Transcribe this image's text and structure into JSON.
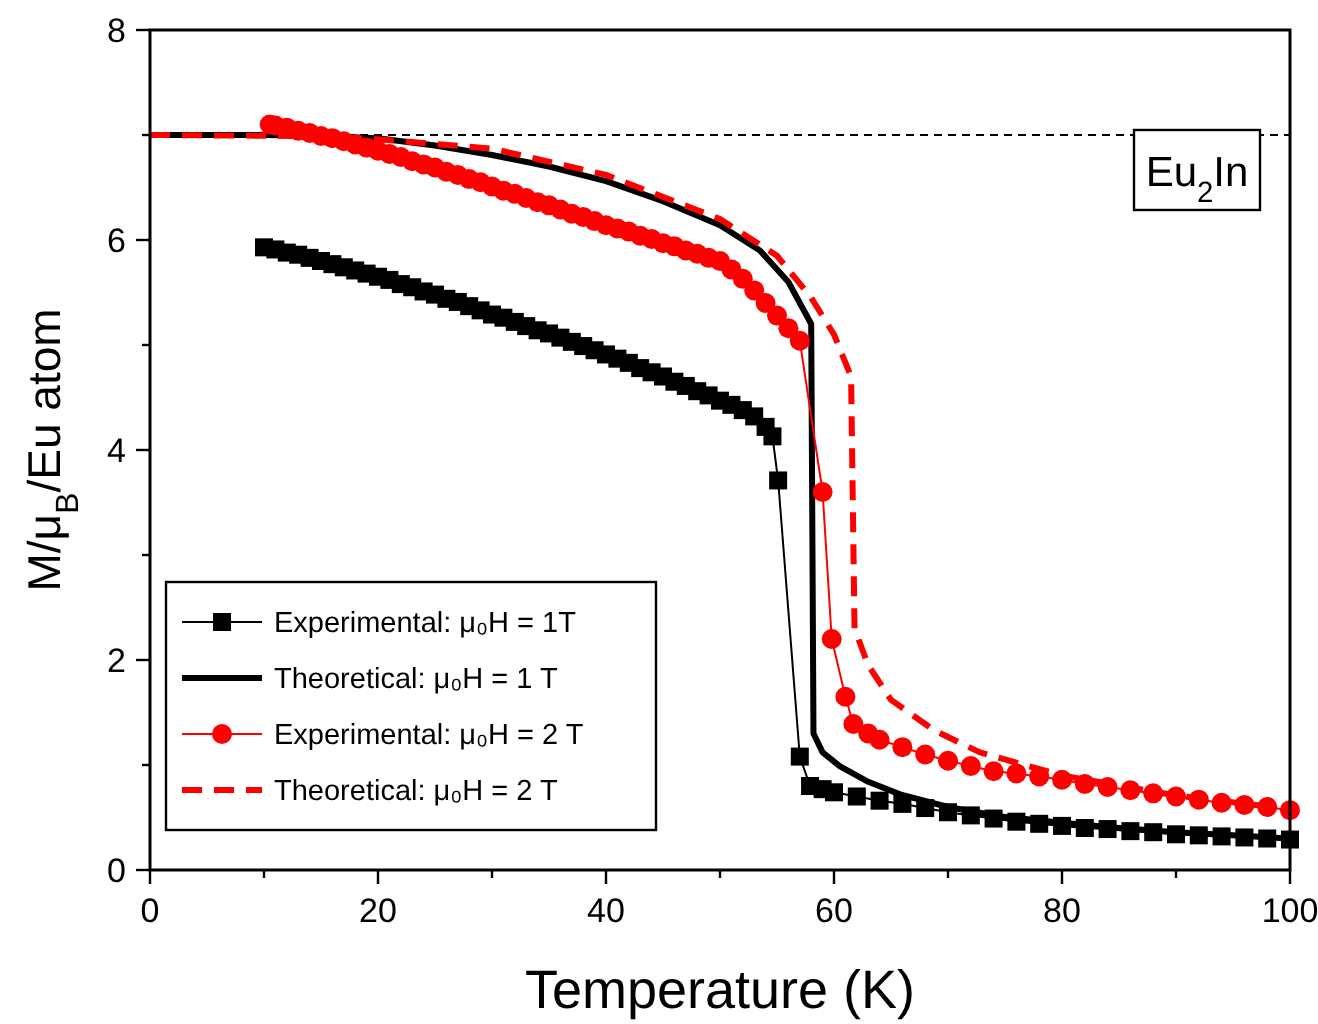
{
  "chart_data": {
    "type": "line",
    "xlabel": "Temperature (K)",
    "ylabel": "M/μ$_{B}$/Eu atom",
    "xlim": [
      0,
      100
    ],
    "ylim": [
      0,
      8
    ],
    "xticks": [
      0,
      {
        "value": 10,
        "label": null
      },
      20,
      {
        "value": 30,
        "label": null
      },
      40,
      {
        "value": 50,
        "label": null
      },
      60,
      {
        "value": 70,
        "label": null
      },
      80,
      {
        "value": 90,
        "label": null
      },
      100
    ],
    "yticks": [
      0,
      {
        "value": 1,
        "label": null
      },
      2,
      {
        "value": 3,
        "label": null
      },
      4,
      {
        "value": 5,
        "label": null
      },
      6,
      {
        "value": 7,
        "label": null
      },
      8
    ],
    "grid": false,
    "legend": "bottom left",
    "annotations": [
      "Eu$_{2}$In"
    ],
    "ref_lines": [
      {
        "axis": "y",
        "value": 7,
        "color": "#000000",
        "line_style": "dashed"
      }
    ],
    "series": [
      {
        "name": "Experimental: μ₀H = 1T",
        "color": "#000000",
        "marker": "square",
        "line_style": "solid",
        "x": [
          10,
          11,
          12,
          13,
          14,
          15,
          16,
          17,
          18,
          19,
          20,
          21,
          22,
          23,
          24,
          25,
          26,
          27,
          28,
          29,
          30,
          31,
          32,
          33,
          34,
          35,
          36,
          37,
          38,
          39,
          40,
          41,
          42,
          43,
          44,
          45,
          46,
          47,
          48,
          49,
          50,
          51,
          52,
          53,
          54,
          54.6,
          55.1,
          57,
          57.9,
          59,
          60,
          62,
          64,
          66,
          68,
          70,
          72,
          74,
          76,
          78,
          80,
          82,
          84,
          86,
          88,
          90,
          92,
          94,
          96,
          98,
          100
        ],
        "values": [
          5.93,
          5.91,
          5.88,
          5.86,
          5.83,
          5.8,
          5.77,
          5.74,
          5.71,
          5.68,
          5.65,
          5.62,
          5.58,
          5.55,
          5.51,
          5.48,
          5.44,
          5.41,
          5.37,
          5.33,
          5.29,
          5.26,
          5.22,
          5.18,
          5.14,
          5.11,
          5.07,
          5.03,
          4.99,
          4.95,
          4.91,
          4.87,
          4.83,
          4.78,
          4.74,
          4.7,
          4.65,
          4.61,
          4.56,
          4.52,
          4.47,
          4.43,
          4.38,
          4.32,
          4.22,
          4.13,
          3.71,
          1.08,
          0.8,
          0.77,
          0.74,
          0.7,
          0.66,
          0.63,
          0.59,
          0.55,
          0.52,
          0.49,
          0.46,
          0.44,
          0.42,
          0.4,
          0.39,
          0.37,
          0.36,
          0.34,
          0.33,
          0.32,
          0.31,
          0.3,
          0.29
        ]
      },
      {
        "name": "Theoretical: μ₀H = 1 T",
        "color": "#000000",
        "marker": "none",
        "line_style": "solid",
        "x": [
          0,
          10,
          15,
          20,
          25,
          30,
          35,
          40,
          45,
          50,
          53.5,
          56,
          58,
          58.2,
          59,
          60.5,
          63,
          65.8,
          70,
          74.6,
          80,
          85,
          90,
          95,
          100
        ],
        "values": [
          7,
          7,
          6.99,
          6.97,
          6.9,
          6.81,
          6.7,
          6.56,
          6.37,
          6.14,
          5.9,
          5.6,
          5.2,
          1.3,
          1.12,
          0.99,
          0.84,
          0.72,
          0.6,
          0.51,
          0.45,
          0.4,
          0.36,
          0.33,
          0.3
        ]
      },
      {
        "name": "Experimental: μ₀H = 2 T",
        "color": "#ff0000",
        "marker": "circle",
        "line_style": "solid",
        "x": [
          10.5,
          11,
          12,
          13,
          14,
          15,
          16,
          17,
          18,
          19,
          20,
          21,
          22,
          23,
          24,
          25,
          26,
          27,
          28,
          29,
          30,
          31,
          32,
          33,
          34,
          35,
          36,
          37,
          38,
          39,
          40,
          41,
          42,
          43,
          44,
          45,
          46,
          47,
          48,
          49,
          50,
          51,
          52,
          53,
          54,
          55,
          56,
          57,
          59,
          59.8,
          61,
          61.7,
          63,
          64,
          66,
          68,
          70,
          72,
          74,
          76,
          78,
          80,
          82,
          84,
          86,
          88,
          90,
          92,
          94,
          96,
          98,
          100
        ],
        "values": [
          7.1,
          7.09,
          7.07,
          7.04,
          7.02,
          6.99,
          6.97,
          6.94,
          6.91,
          6.88,
          6.85,
          6.82,
          6.79,
          6.75,
          6.72,
          6.69,
          6.65,
          6.62,
          6.58,
          6.55,
          6.51,
          6.47,
          6.44,
          6.4,
          6.36,
          6.33,
          6.29,
          6.25,
          6.22,
          6.18,
          6.14,
          6.11,
          6.08,
          6.04,
          6.01,
          5.97,
          5.94,
          5.9,
          5.87,
          5.83,
          5.8,
          5.72,
          5.63,
          5.52,
          5.4,
          5.28,
          5.16,
          5.04,
          3.6,
          2.2,
          1.65,
          1.39,
          1.3,
          1.24,
          1.17,
          1.1,
          1.04,
          0.99,
          0.94,
          0.92,
          0.89,
          0.86,
          0.82,
          0.79,
          0.76,
          0.73,
          0.7,
          0.67,
          0.64,
          0.62,
          0.6,
          0.57
        ]
      },
      {
        "name": "Theoretical: μ₀H = 2 T",
        "color": "#ff0000",
        "marker": "none",
        "line_style": "dashed",
        "x": [
          0,
          15,
          20,
          30,
          40,
          50,
          55,
          58,
          60,
          61.5,
          61.8,
          63,
          65,
          68.8,
          72.8,
          80,
          90,
          100
        ],
        "values": [
          7,
          6.99,
          6.96,
          6.87,
          6.62,
          6.2,
          5.85,
          5.45,
          5.1,
          4.7,
          2.3,
          1.95,
          1.62,
          1.33,
          1.12,
          0.9,
          0.71,
          0.58
        ]
      }
    ]
  }
}
